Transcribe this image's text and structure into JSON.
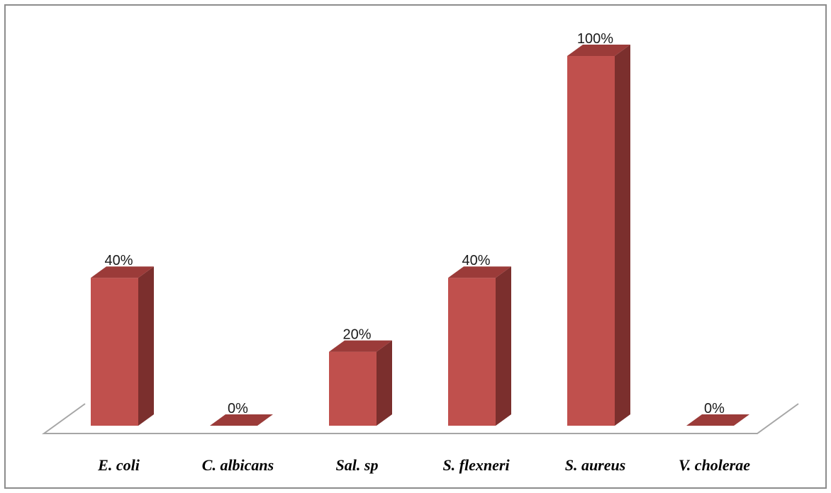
{
  "chart_data": {
    "type": "bar",
    "style": "3d-column",
    "categories": [
      "E. coli",
      "C. albicans",
      "Sal. sp",
      "S. flexneri",
      "S. aureus",
      "V. cholerae"
    ],
    "values": [
      40,
      0,
      20,
      40,
      100,
      0
    ],
    "data_labels": [
      "40%",
      "0%",
      "20%",
      "40%",
      "100%",
      "0%"
    ],
    "ylim": [
      0,
      100
    ],
    "title": "",
    "xlabel": "",
    "ylabel": "",
    "grid": false,
    "legend": "none",
    "colors": {
      "bar_front": "#c0504d",
      "bar_top": "#9b3b39",
      "bar_side": "#7b2f2d",
      "floor_line": "#a6a6a6"
    }
  }
}
